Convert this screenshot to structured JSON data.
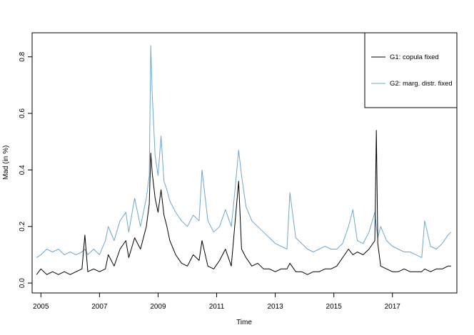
{
  "chart_data": {
    "type": "line",
    "title": "",
    "xlabel": "Time",
    "ylabel": "Mad (in %)",
    "xlim": [
      2004.7,
      2019.2
    ],
    "ylim": [
      -0.035,
      0.885
    ],
    "x_ticks": [
      2005,
      2007,
      2009,
      2011,
      2013,
      2015,
      2017
    ],
    "x_tick_labels": [
      "2005",
      "2007",
      "2009",
      "2011",
      "2013",
      "2015",
      "2017"
    ],
    "y_ticks": [
      0.0,
      0.2,
      0.4,
      0.6,
      0.8
    ],
    "y_tick_labels": [
      "0.0",
      "0.2",
      "0.4",
      "0.6",
      "0.8"
    ],
    "grid": false,
    "legend_position": "top-right",
    "series": [
      {
        "name": "G1: copula fixed",
        "color": "#000000",
        "x": [
          2004.85,
          2005.0,
          2005.2,
          2005.4,
          2005.6,
          2005.8,
          2006.0,
          2006.2,
          2006.4,
          2006.5,
          2006.6,
          2006.8,
          2007.0,
          2007.2,
          2007.3,
          2007.5,
          2007.7,
          2007.9,
          2008.0,
          2008.2,
          2008.4,
          2008.6,
          2008.7,
          2008.75,
          2008.8,
          2008.9,
          2009.0,
          2009.1,
          2009.2,
          2009.3,
          2009.4,
          2009.6,
          2009.8,
          2010.0,
          2010.2,
          2010.4,
          2010.5,
          2010.7,
          2010.9,
          2011.1,
          2011.3,
          2011.5,
          2011.6,
          2011.75,
          2011.85,
          2012.0,
          2012.2,
          2012.4,
          2012.6,
          2012.8,
          2013.0,
          2013.2,
          2013.4,
          2013.5,
          2013.7,
          2013.9,
          2014.1,
          2014.3,
          2014.5,
          2014.7,
          2014.9,
          2015.1,
          2015.3,
          2015.5,
          2015.65,
          2015.8,
          2016.0,
          2016.2,
          2016.4,
          2016.45,
          2016.5,
          2016.6,
          2016.8,
          2017.0,
          2017.2,
          2017.4,
          2017.6,
          2017.8,
          2018.0,
          2018.1,
          2018.3,
          2018.5,
          2018.7,
          2018.9,
          2019.0
        ],
        "values": [
          0.03,
          0.05,
          0.03,
          0.04,
          0.03,
          0.04,
          0.03,
          0.04,
          0.05,
          0.17,
          0.04,
          0.05,
          0.04,
          0.05,
          0.1,
          0.06,
          0.12,
          0.15,
          0.09,
          0.16,
          0.12,
          0.2,
          0.28,
          0.46,
          0.39,
          0.3,
          0.25,
          0.33,
          0.24,
          0.2,
          0.15,
          0.1,
          0.07,
          0.06,
          0.1,
          0.08,
          0.15,
          0.06,
          0.05,
          0.08,
          0.12,
          0.06,
          0.18,
          0.36,
          0.12,
          0.09,
          0.06,
          0.07,
          0.05,
          0.05,
          0.04,
          0.05,
          0.05,
          0.07,
          0.04,
          0.04,
          0.03,
          0.04,
          0.04,
          0.05,
          0.05,
          0.06,
          0.09,
          0.12,
          0.1,
          0.11,
          0.1,
          0.12,
          0.15,
          0.54,
          0.14,
          0.06,
          0.05,
          0.04,
          0.04,
          0.05,
          0.04,
          0.04,
          0.04,
          0.05,
          0.04,
          0.05,
          0.05,
          0.06,
          0.06
        ]
      },
      {
        "name": "G2: marg. distr. fixed",
        "color": "#6fa6cf",
        "x": [
          2004.85,
          2005.0,
          2005.2,
          2005.4,
          2005.6,
          2005.8,
          2006.0,
          2006.2,
          2006.4,
          2006.5,
          2006.6,
          2006.8,
          2007.0,
          2007.2,
          2007.3,
          2007.5,
          2007.7,
          2007.9,
          2008.0,
          2008.2,
          2008.4,
          2008.6,
          2008.7,
          2008.75,
          2008.8,
          2008.9,
          2009.0,
          2009.1,
          2009.2,
          2009.3,
          2009.4,
          2009.6,
          2009.8,
          2010.0,
          2010.2,
          2010.4,
          2010.5,
          2010.7,
          2010.9,
          2011.1,
          2011.3,
          2011.5,
          2011.6,
          2011.75,
          2011.85,
          2012.0,
          2012.2,
          2012.4,
          2012.6,
          2012.8,
          2013.0,
          2013.2,
          2013.4,
          2013.5,
          2013.7,
          2013.9,
          2014.1,
          2014.3,
          2014.5,
          2014.7,
          2014.9,
          2015.1,
          2015.3,
          2015.5,
          2015.65,
          2015.8,
          2016.0,
          2016.2,
          2016.4,
          2016.45,
          2016.5,
          2016.6,
          2016.8,
          2017.0,
          2017.2,
          2017.4,
          2017.6,
          2017.8,
          2018.0,
          2018.1,
          2018.3,
          2018.5,
          2018.7,
          2018.9,
          2019.0
        ],
        "values": [
          0.09,
          0.1,
          0.12,
          0.11,
          0.12,
          0.1,
          0.11,
          0.1,
          0.11,
          0.12,
          0.1,
          0.12,
          0.1,
          0.15,
          0.2,
          0.15,
          0.22,
          0.25,
          0.18,
          0.3,
          0.2,
          0.3,
          0.38,
          0.84,
          0.67,
          0.45,
          0.38,
          0.52,
          0.36,
          0.33,
          0.29,
          0.25,
          0.22,
          0.2,
          0.24,
          0.22,
          0.4,
          0.22,
          0.18,
          0.2,
          0.26,
          0.2,
          0.3,
          0.47,
          0.38,
          0.27,
          0.22,
          0.2,
          0.18,
          0.16,
          0.14,
          0.13,
          0.12,
          0.32,
          0.16,
          0.14,
          0.12,
          0.11,
          0.12,
          0.13,
          0.12,
          0.12,
          0.14,
          0.2,
          0.26,
          0.15,
          0.14,
          0.18,
          0.25,
          0.2,
          0.16,
          0.2,
          0.15,
          0.13,
          0.12,
          0.11,
          0.11,
          0.1,
          0.09,
          0.22,
          0.13,
          0.12,
          0.14,
          0.17,
          0.18
        ]
      }
    ]
  }
}
